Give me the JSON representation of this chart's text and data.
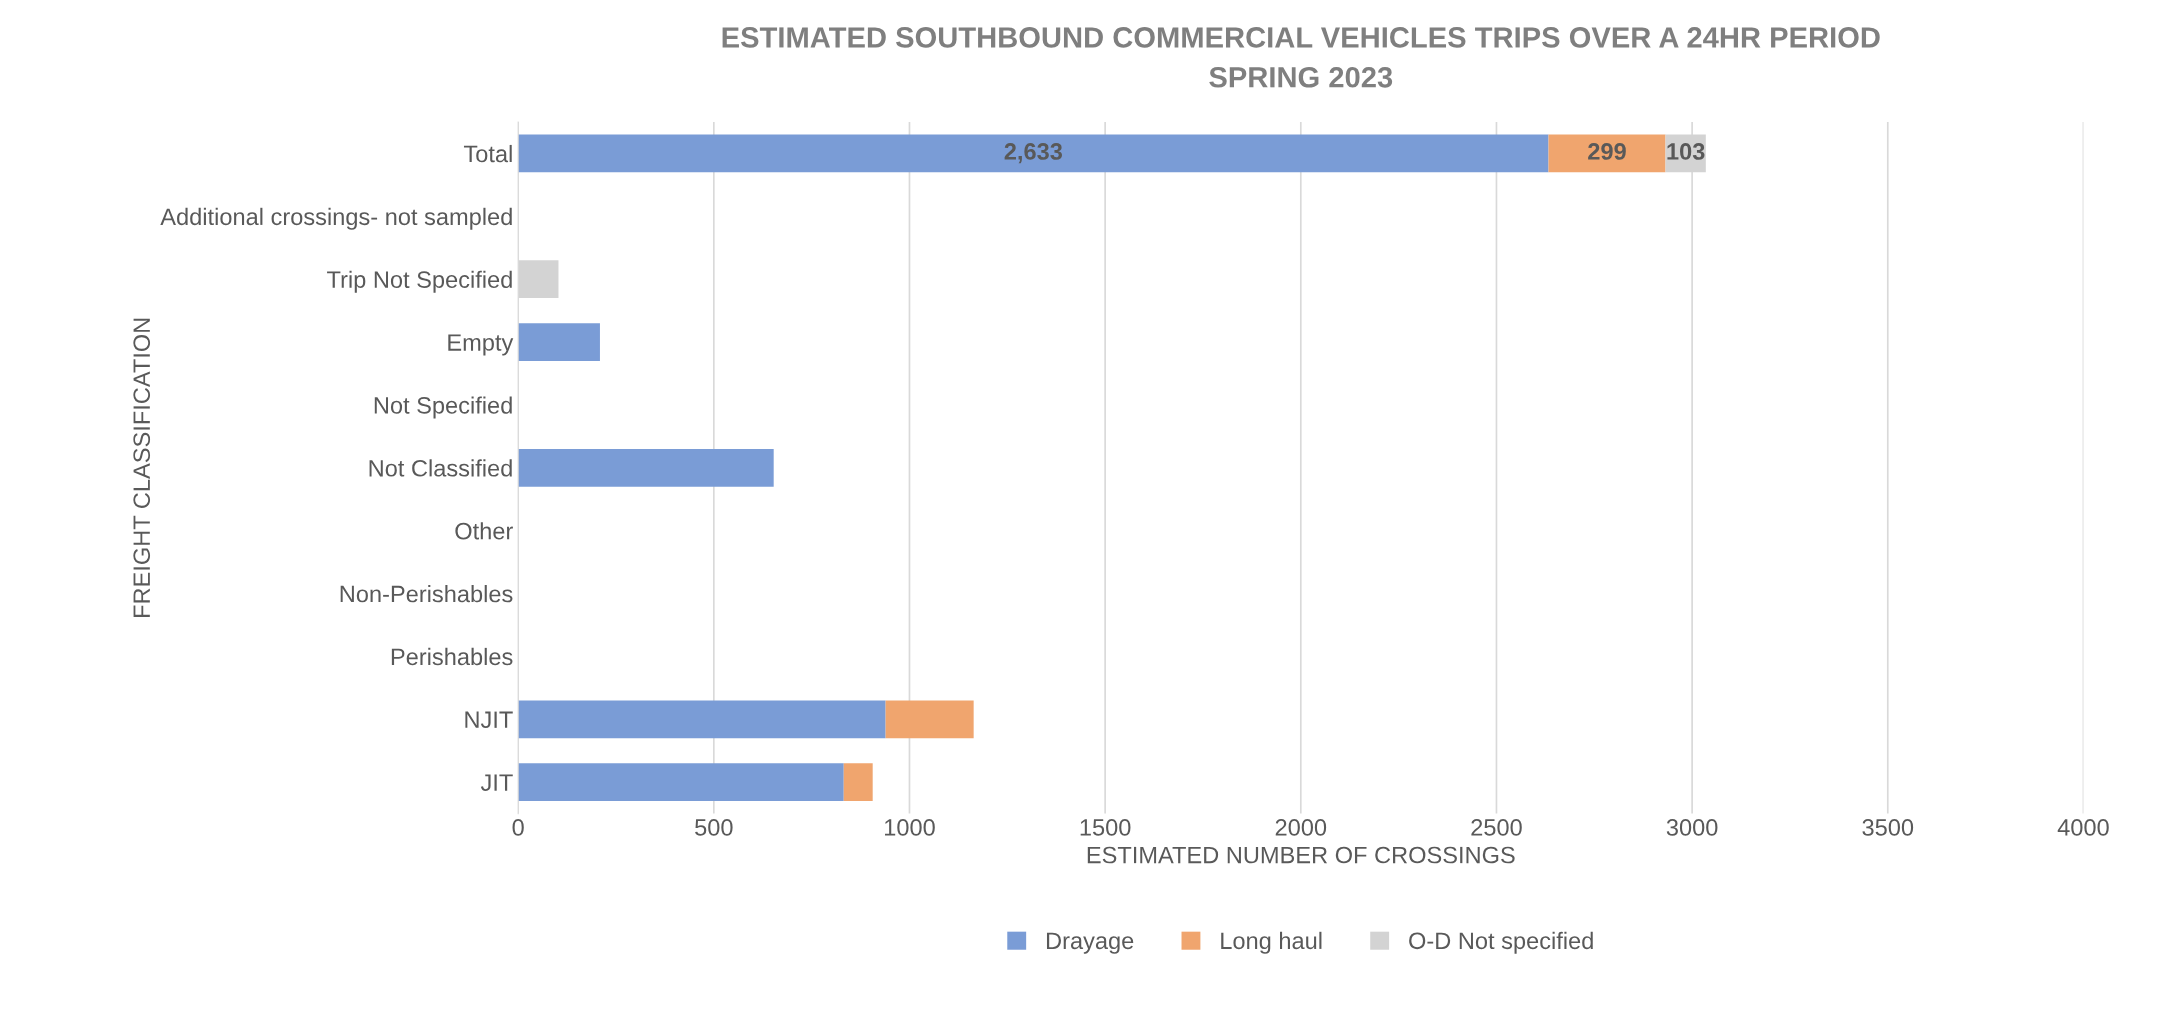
{
  "chart_data": {
    "type": "bar",
    "orientation": "horizontal",
    "stacked": true,
    "title": "ESTIMATED SOUTHBOUND COMMERCIAL VEHICLES TRIPS OVER A 24HR PERIOD\nSPRING 2023",
    "xlabel": "ESTIMATED NUMBER OF CROSSINGS",
    "ylabel": "FREIGHT CLASSIFICATION",
    "categories": [
      "Total",
      "Additional crossings- not sampled",
      "Trip Not Specified",
      "Empty",
      "Not Specified",
      "Not Classified",
      "Other",
      "Non-Perishables",
      "Perishables",
      "NJIT",
      "JIT"
    ],
    "series": [
      {
        "name": "Drayage",
        "color": "#7a9cd6",
        "values": [
          2633,
          null,
          null,
          209,
          null,
          653,
          null,
          null,
          null,
          939,
          832
        ],
        "value_labels": [
          "2,633",
          null,
          null,
          null,
          null,
          null,
          null,
          null,
          null,
          null,
          null
        ]
      },
      {
        "name": "Long haul",
        "color": "#f0a56e",
        "values": [
          299,
          null,
          null,
          null,
          null,
          null,
          null,
          null,
          null,
          225,
          74
        ],
        "value_labels": [
          "299",
          null,
          null,
          null,
          null,
          null,
          null,
          null,
          null,
          null,
          null
        ]
      },
      {
        "name": "O-D Not specified",
        "color": "#d3d3d3",
        "values": [
          103,
          null,
          103,
          null,
          null,
          null,
          null,
          null,
          null,
          null,
          null
        ],
        "value_labels": [
          "103",
          null,
          null,
          null,
          null,
          null,
          null,
          null,
          null,
          null,
          null
        ]
      }
    ],
    "xlim": [
      0,
      4000
    ],
    "xticks": [
      0,
      500,
      1000,
      1500,
      2000,
      2500,
      3000,
      3500,
      4000
    ],
    "grid": "x",
    "legend": "bottom"
  }
}
